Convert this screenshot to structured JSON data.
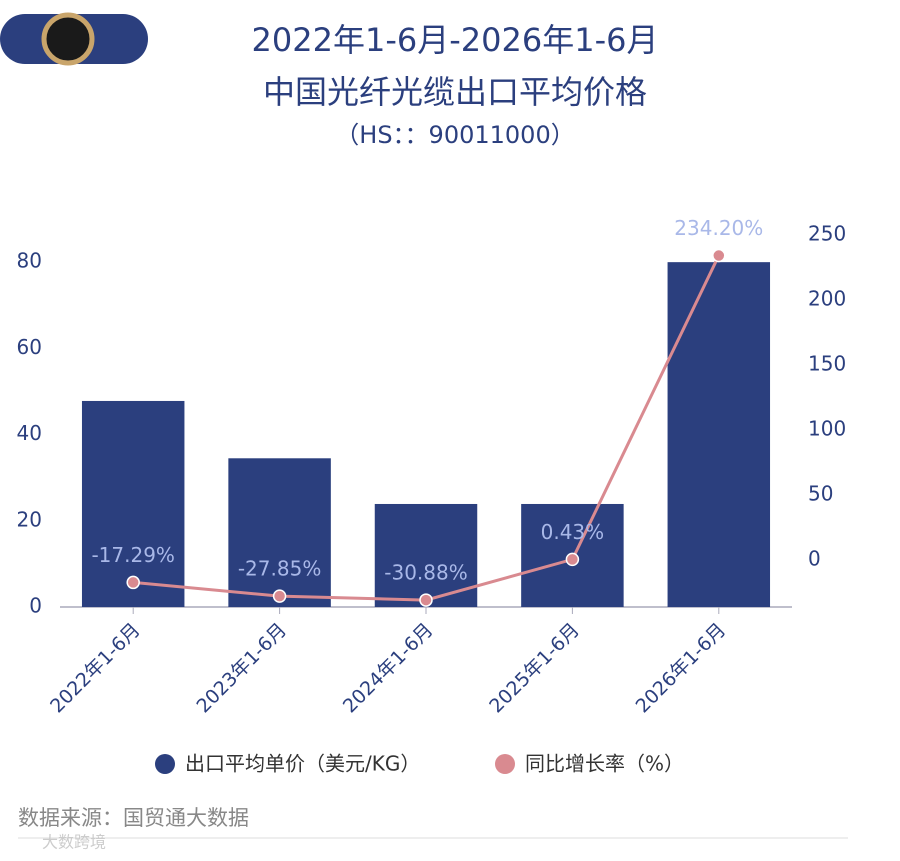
{
  "chart_data": {
    "type": "bar-line",
    "title_lines": [
      "2022年1-6月-2026年1-6月",
      "中国光纤光缆出口平均价格"
    ],
    "subtitle": "（HS：：90011000）",
    "categories": [
      "2022年1-6月",
      "2023年1-6月",
      "2024年1-6月",
      "2025年1-6月",
      "2026年1-6月"
    ],
    "series": [
      {
        "name": "出口平均单价（美元/KG）",
        "color": "#2b3f7e",
        "type": "bar",
        "values": [
          47.8,
          34.5,
          23.9,
          23.9,
          80.0
        ]
      },
      {
        "name": "同比增长率（%）",
        "color": "#d98a90",
        "type": "line",
        "axis": "y2",
        "values": [
          -17.29,
          -27.85,
          -30.88,
          0.43,
          234.2
        ],
        "value_labels": [
          "-17.29%",
          "-27.85%",
          "-30.88%",
          "0.43%",
          "234.20%"
        ]
      }
    ],
    "ylim": [
      0,
      86.3
    ],
    "yticks": [
      0,
      20,
      40,
      60,
      80
    ],
    "y2lim": [
      -36.2,
      250
    ],
    "y2ticks": [
      0,
      50,
      100,
      150,
      200,
      250
    ],
    "source": "数据来源：国贸通大数据",
    "watermark": "大数跨境"
  }
}
